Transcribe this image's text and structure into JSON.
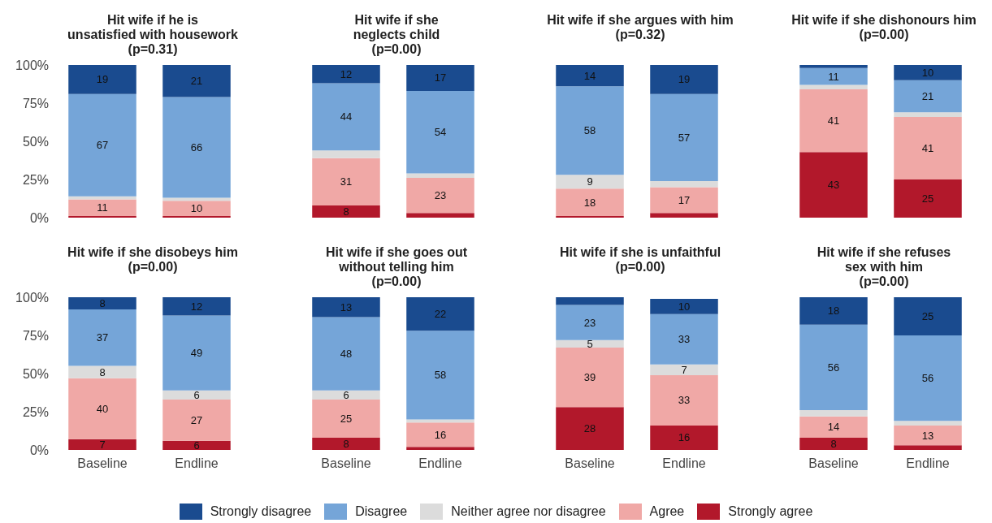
{
  "chart_data": [
    {
      "type": "bar",
      "stacked": true,
      "title": "Hit wife if he is\nunsatisfied with housework\n(p=0.31)",
      "categories": [
        "Baseline",
        "Endline"
      ],
      "ylim": [
        0,
        100
      ],
      "yticks": [
        {
          "value": 0,
          "label": "0%"
        },
        {
          "value": 25,
          "label": "25%"
        },
        {
          "value": 50,
          "label": "50%"
        },
        {
          "value": 75,
          "label": "75%"
        },
        {
          "value": 100,
          "label": "100%"
        }
      ],
      "tick_labels": "y",
      "legend": "bottom",
      "series": [
        {
          "name": "Strongly agree",
          "color": "#b2182b",
          "values": [
            1,
            1
          ],
          "value_labels": [
            null,
            null
          ]
        },
        {
          "name": "Agree",
          "color": "#f0a8a6",
          "values": [
            11,
            10
          ],
          "value_labels": [
            "11",
            "10"
          ]
        },
        {
          "name": "Neither agree nor disagree",
          "color": "#dcdcdc",
          "values": [
            2,
            2
          ],
          "value_labels": [
            null,
            null
          ]
        },
        {
          "name": "Disagree",
          "color": "#75a5d8",
          "values": [
            67,
            66
          ],
          "value_labels": [
            "67",
            "66"
          ]
        },
        {
          "name": "Strongly disagree",
          "color": "#1a4b8f",
          "values": [
            19,
            21
          ],
          "value_labels": [
            "19",
            "21"
          ]
        }
      ]
    },
    {
      "type": "bar",
      "stacked": true,
      "title": "Hit wife if she\nneglects child\n(p=0.00)",
      "categories": [
        "Baseline",
        "Endline"
      ],
      "ylim": [
        0,
        100
      ],
      "tick_labels": false,
      "series": [
        {
          "name": "Strongly agree",
          "color": "#b2182b",
          "values": [
            8,
            3
          ],
          "value_labels": [
            "8",
            null
          ]
        },
        {
          "name": "Agree",
          "color": "#f0a8a6",
          "values": [
            31,
            23
          ],
          "value_labels": [
            "31",
            "23"
          ]
        },
        {
          "name": "Neither agree nor disagree",
          "color": "#dcdcdc",
          "values": [
            5,
            3
          ],
          "value_labels": [
            null,
            null
          ]
        },
        {
          "name": "Disagree",
          "color": "#75a5d8",
          "values": [
            44,
            54
          ],
          "value_labels": [
            "44",
            "54"
          ]
        },
        {
          "name": "Strongly disagree",
          "color": "#1a4b8f",
          "values": [
            12,
            17
          ],
          "value_labels": [
            "12",
            "17"
          ]
        }
      ]
    },
    {
      "type": "bar",
      "stacked": true,
      "title": "Hit wife if she argues with him\n(p=0.32)",
      "categories": [
        "Baseline",
        "Endline"
      ],
      "ylim": [
        0,
        100
      ],
      "tick_labels": false,
      "series": [
        {
          "name": "Strongly agree",
          "color": "#b2182b",
          "values": [
            1,
            3
          ],
          "value_labels": [
            null,
            null
          ]
        },
        {
          "name": "Agree",
          "color": "#f0a8a6",
          "values": [
            18,
            17
          ],
          "value_labels": [
            "18",
            "17"
          ]
        },
        {
          "name": "Neither agree nor disagree",
          "color": "#dcdcdc",
          "values": [
            9,
            4
          ],
          "value_labels": [
            "9",
            null
          ]
        },
        {
          "name": "Disagree",
          "color": "#75a5d8",
          "values": [
            58,
            57
          ],
          "value_labels": [
            "58",
            "57"
          ]
        },
        {
          "name": "Strongly disagree",
          "color": "#1a4b8f",
          "values": [
            14,
            19
          ],
          "value_labels": [
            "14",
            "19"
          ]
        }
      ]
    },
    {
      "type": "bar",
      "stacked": true,
      "title": "Hit wife if she dishonours him\n(p=0.00)",
      "categories": [
        "Baseline",
        "Endline"
      ],
      "ylim": [
        0,
        100
      ],
      "tick_labels": false,
      "series": [
        {
          "name": "Strongly agree",
          "color": "#b2182b",
          "values": [
            43,
            25
          ],
          "value_labels": [
            "43",
            "25"
          ]
        },
        {
          "name": "Agree",
          "color": "#f0a8a6",
          "values": [
            41,
            41
          ],
          "value_labels": [
            "41",
            "41"
          ]
        },
        {
          "name": "Neither agree nor disagree",
          "color": "#dcdcdc",
          "values": [
            3,
            3
          ],
          "value_labels": [
            null,
            null
          ]
        },
        {
          "name": "Disagree",
          "color": "#75a5d8",
          "values": [
            11,
            21
          ],
          "value_labels": [
            "11",
            "21"
          ]
        },
        {
          "name": "Strongly disagree",
          "color": "#1a4b8f",
          "values": [
            2,
            10
          ],
          "value_labels": [
            null,
            "10"
          ]
        }
      ]
    },
    {
      "type": "bar",
      "stacked": true,
      "title": "Hit wife if she disobeys him\n(p=0.00)",
      "categories": [
        "Baseline",
        "Endline"
      ],
      "ylim": [
        0,
        100
      ],
      "yticks": [
        {
          "value": 0,
          "label": "0%"
        },
        {
          "value": 25,
          "label": "25%"
        },
        {
          "value": 50,
          "label": "50%"
        },
        {
          "value": 75,
          "label": "75%"
        },
        {
          "value": 100,
          "label": "100%"
        }
      ],
      "series": [
        {
          "name": "Strongly agree",
          "color": "#b2182b",
          "values": [
            7,
            6
          ],
          "value_labels": [
            "7",
            "6"
          ]
        },
        {
          "name": "Agree",
          "color": "#f0a8a6",
          "values": [
            40,
            27
          ],
          "value_labels": [
            "40",
            "27"
          ]
        },
        {
          "name": "Neither agree nor disagree",
          "color": "#dcdcdc",
          "values": [
            8,
            6
          ],
          "value_labels": [
            "8",
            "6"
          ]
        },
        {
          "name": "Disagree",
          "color": "#75a5d8",
          "values": [
            37,
            49
          ],
          "value_labels": [
            "37",
            "49"
          ]
        },
        {
          "name": "Strongly disagree",
          "color": "#1a4b8f",
          "values": [
            8,
            12
          ],
          "value_labels": [
            "8",
            "12"
          ]
        }
      ]
    },
    {
      "type": "bar",
      "stacked": true,
      "title": "Hit wife if she goes out\nwithout telling him\n(p=0.00)",
      "categories": [
        "Baseline",
        "Endline"
      ],
      "ylim": [
        0,
        100
      ],
      "tick_labels": "x",
      "series": [
        {
          "name": "Strongly agree",
          "color": "#b2182b",
          "values": [
            8,
            2
          ],
          "value_labels": [
            "8",
            null
          ]
        },
        {
          "name": "Agree",
          "color": "#f0a8a6",
          "values": [
            25,
            16
          ],
          "value_labels": [
            "25",
            "16"
          ]
        },
        {
          "name": "Neither agree nor disagree",
          "color": "#dcdcdc",
          "values": [
            6,
            2
          ],
          "value_labels": [
            "6",
            null
          ]
        },
        {
          "name": "Disagree",
          "color": "#75a5d8",
          "values": [
            48,
            58
          ],
          "value_labels": [
            "48",
            "58"
          ]
        },
        {
          "name": "Strongly disagree",
          "color": "#1a4b8f",
          "values": [
            13,
            22
          ],
          "value_labels": [
            "13",
            "22"
          ]
        }
      ]
    },
    {
      "type": "bar",
      "stacked": true,
      "title": "Hit wife if she is unfaithful\n(p=0.00)",
      "categories": [
        "Baseline",
        "Endline"
      ],
      "ylim": [
        0,
        100
      ],
      "tick_labels": "x",
      "series": [
        {
          "name": "Strongly agree",
          "color": "#b2182b",
          "values": [
            28,
            16
          ],
          "value_labels": [
            "28",
            "16"
          ]
        },
        {
          "name": "Agree",
          "color": "#f0a8a6",
          "values": [
            39,
            33
          ],
          "value_labels": [
            "39",
            "33"
          ]
        },
        {
          "name": "Neither agree nor disagree",
          "color": "#dcdcdc",
          "values": [
            5,
            7
          ],
          "value_labels": [
            "5",
            "7"
          ]
        },
        {
          "name": "Disagree",
          "color": "#75a5d8",
          "values": [
            23,
            33
          ],
          "value_labels": [
            "23",
            "33"
          ]
        },
        {
          "name": "Strongly disagree",
          "color": "#1a4b8f",
          "values": [
            5,
            10
          ],
          "value_labels": [
            null,
            "10"
          ]
        }
      ]
    },
    {
      "type": "bar",
      "stacked": true,
      "title": "Hit wife if she refuses\nsex with him\n(p=0.00)",
      "categories": [
        "Baseline",
        "Endline"
      ],
      "ylim": [
        0,
        100
      ],
      "tick_labels": "x",
      "series": [
        {
          "name": "Strongly agree",
          "color": "#b2182b",
          "values": [
            8,
            3
          ],
          "value_labels": [
            "8",
            null
          ]
        },
        {
          "name": "Agree",
          "color": "#f0a8a6",
          "values": [
            14,
            13
          ],
          "value_labels": [
            "14",
            "13"
          ]
        },
        {
          "name": "Neither agree nor disagree",
          "color": "#dcdcdc",
          "values": [
            4,
            3
          ],
          "value_labels": [
            null,
            null
          ]
        },
        {
          "name": "Disagree",
          "color": "#75a5d8",
          "values": [
            56,
            56
          ],
          "value_labels": [
            "56",
            "56"
          ]
        },
        {
          "name": "Strongly disagree",
          "color": "#1a4b8f",
          "values": [
            18,
            25
          ],
          "value_labels": [
            "18",
            "25"
          ]
        }
      ]
    }
  ]
}
